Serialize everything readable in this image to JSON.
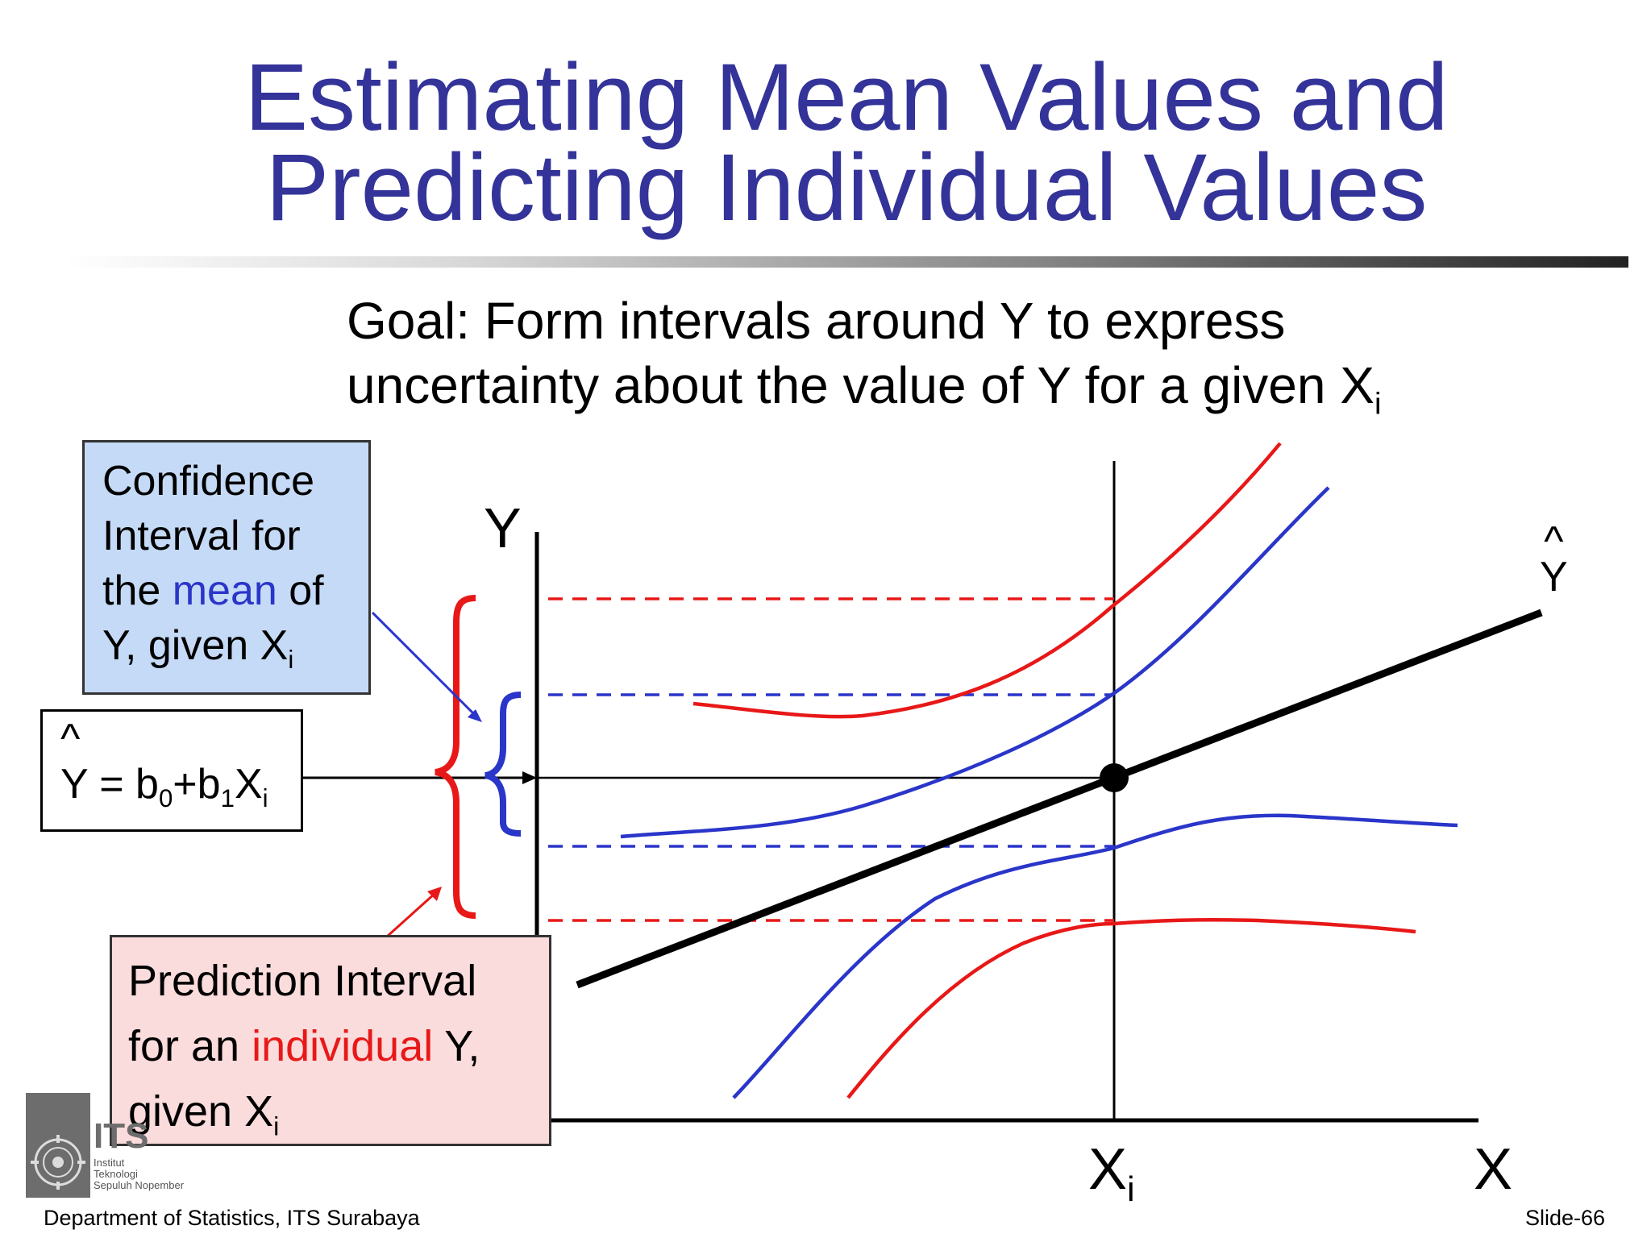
{
  "title": {
    "line1": "Estimating Mean Values and",
    "line2": "Predicting Individual Values"
  },
  "goal": {
    "line1": "Goal:  Form intervals around Y to express",
    "line2": "uncertainty about the value of Y for a given X",
    "line2_sub": "i"
  },
  "confidence_box": {
    "line1": "Confidence",
    "line2": "Interval for",
    "line3_pre": "the ",
    "line3_highlight": "mean",
    "line3_post": " of",
    "line4": "Y, given X",
    "line4_sub": "i"
  },
  "equation_box": {
    "hat": "^",
    "y": "Y = b",
    "b0_sub": "0",
    "plus_b": "+b",
    "b1_sub": "1",
    "x": "X",
    "x_sub": "i"
  },
  "prediction_box": {
    "line1": "Prediction Interval",
    "line2_pre": "for an ",
    "line2_highlight": "individual",
    "line2_post": " Y,",
    "line3": "given X",
    "line3_sub": "i"
  },
  "axes": {
    "y_label": "Y",
    "x_label": "X",
    "xi_label": "X",
    "xi_sub": "i",
    "yhat_hat": "^",
    "yhat_y": "Y"
  },
  "footer": {
    "department": "Department of  Statistics, ITS Surabaya",
    "slide": "Slide-66"
  },
  "logo": {
    "text_main": "ITS",
    "text_line1": "Institut",
    "text_line2": "Teknologi",
    "text_line3": "Sepuluh Nopember"
  },
  "colors": {
    "title": "#333399",
    "confidence": "#2a35c9",
    "prediction": "#e81818",
    "regression_line": "#000000"
  }
}
